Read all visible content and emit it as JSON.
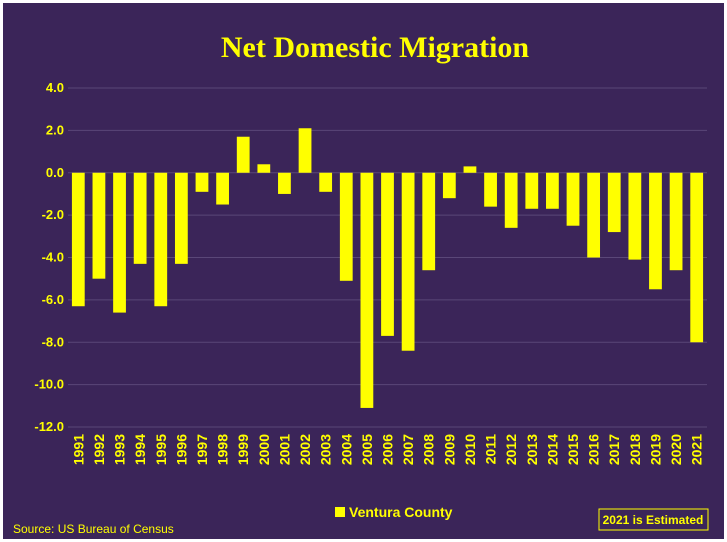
{
  "chart_data": {
    "type": "bar",
    "title": "Net Domestic Migration",
    "xlabel": "",
    "ylabel": "",
    "ylim": [
      -12.0,
      4.0
    ],
    "yticks": [
      "4.0",
      "2.0",
      "0.0",
      "-2.0",
      "-4.0",
      "-6.0",
      "-8.0",
      "-10.0",
      "-12.0"
    ],
    "ytick_values": [
      4,
      2,
      0,
      -2,
      -4,
      -6,
      -8,
      -10,
      -12
    ],
    "grid": true,
    "legend_position": "bottom",
    "categories": [
      "1991",
      "1992",
      "1993",
      "1994",
      "1995",
      "1996",
      "1997",
      "1998",
      "1999",
      "2000",
      "2001",
      "2002",
      "2003",
      "2004",
      "2005",
      "2006",
      "2007",
      "2008",
      "2009",
      "2010",
      "2011",
      "2012",
      "2013",
      "2014",
      "2015",
      "2016",
      "2017",
      "2018",
      "2019",
      "2020",
      "2021"
    ],
    "series": [
      {
        "name": "Ventura County",
        "color": "#ffff00",
        "values": [
          -6.3,
          -5.0,
          -6.6,
          -4.3,
          -6.3,
          -4.3,
          -0.9,
          -1.5,
          1.7,
          0.4,
          -1.0,
          2.1,
          -0.9,
          -5.1,
          -11.1,
          -7.7,
          -8.4,
          -4.6,
          -1.2,
          0.3,
          -1.6,
          -2.6,
          -1.7,
          -1.7,
          -2.5,
          -4.0,
          -2.8,
          -4.1,
          -5.5,
          -4.6,
          -8.0
        ]
      }
    ]
  },
  "source": "Source: US Bureau of Census",
  "note": "2021 is Estimated",
  "colors": {
    "background": "#3b2559",
    "bar": "#ffff00",
    "text": "#ffff00",
    "grid": "#5a4778"
  }
}
